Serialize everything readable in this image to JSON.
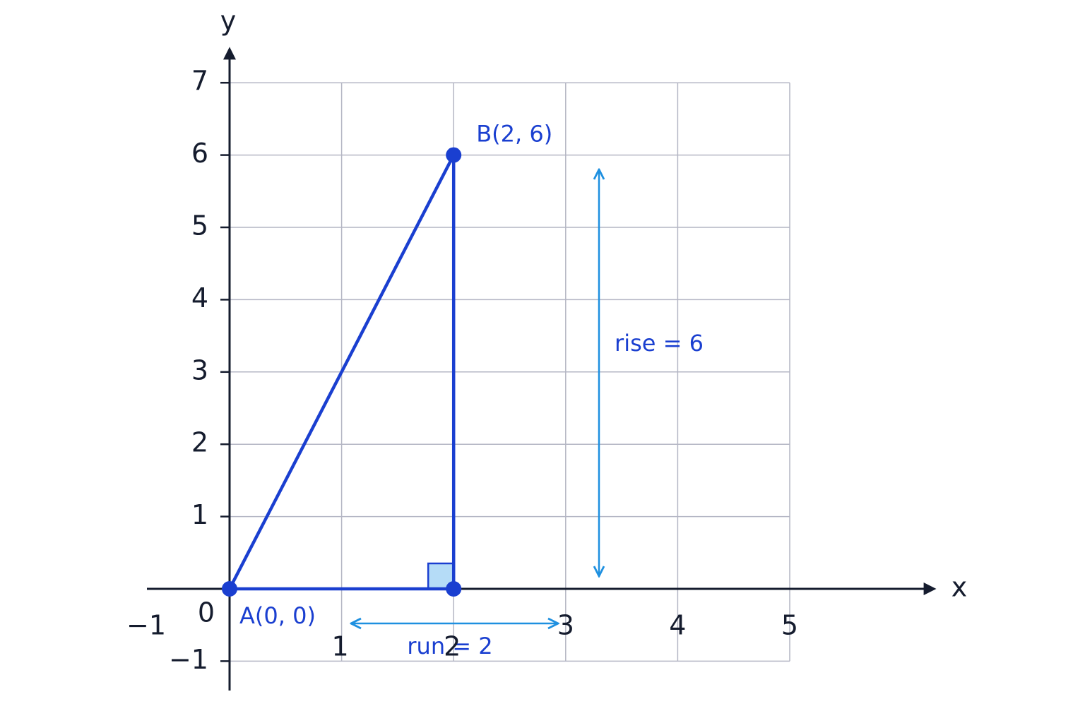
{
  "axes": {
    "x_label": "x",
    "y_label": "y",
    "origin_label": "0",
    "xticks": [
      {
        "value": -1,
        "label": "−1"
      },
      1,
      2,
      3,
      4,
      5
    ],
    "yticks": [
      {
        "value": -1,
        "label": "−1"
      },
      1,
      2,
      3,
      4,
      5,
      6,
      7
    ]
  },
  "points": [
    {
      "label": "A(0, 0)",
      "x": 0,
      "y": 0
    },
    {
      "label": "B(2, 6)",
      "x": 2,
      "y": 6
    },
    {
      "x": 2,
      "y": 0
    }
  ],
  "annotations": {
    "rise": "rise = 6",
    "run": "run = 2"
  }
}
